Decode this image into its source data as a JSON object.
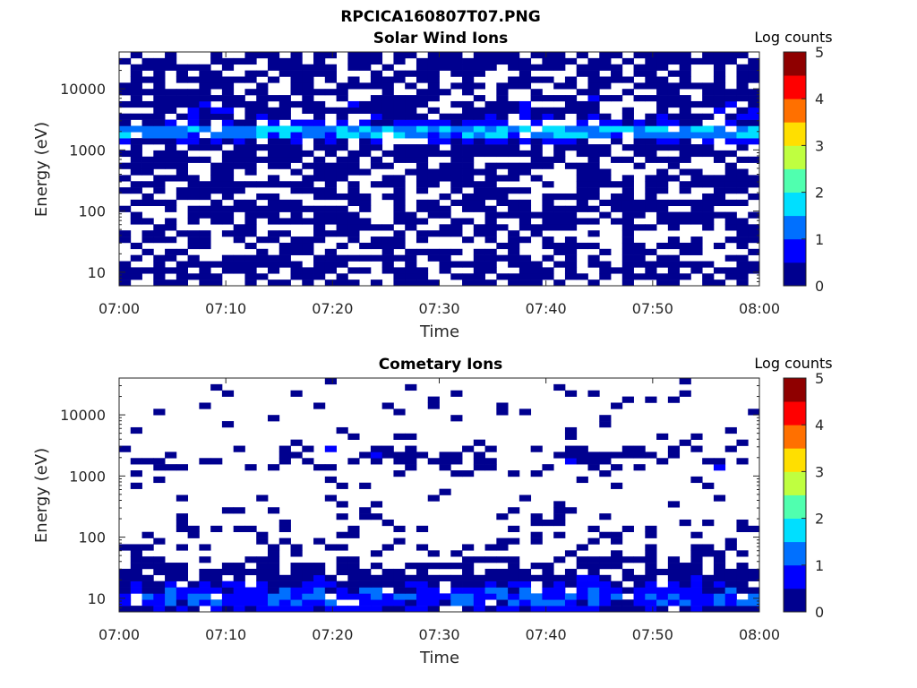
{
  "figure": {
    "title": "RPCICA160807T07.PNG"
  },
  "colormap": [
    "#00008f",
    "#0000ff",
    "#0070ff",
    "#00dfff",
    "#50ffaf",
    "#bfff40",
    "#ffdf00",
    "#ff7000",
    "#ff0000",
    "#8f0000"
  ],
  "chart_data": [
    {
      "type": "heatmap",
      "title": "Solar Wind Ions",
      "xlabel": "Time",
      "ylabel": "Energy (eV)",
      "yscale": "log",
      "ylim": [
        6,
        40000
      ],
      "xlim": [
        "07:00",
        "08:00"
      ],
      "x_ticks": [
        "07:00",
        "07:10",
        "07:20",
        "07:30",
        "07:40",
        "07:50",
        "08:00"
      ],
      "y_ticks": [
        "10",
        "100",
        "1000",
        "10000"
      ],
      "colorbar": {
        "label": "Log counts",
        "range": [
          0,
          5
        ],
        "ticks": [
          "0",
          "1",
          "2",
          "3",
          "4",
          "5"
        ]
      },
      "time_bins": 56,
      "energy_bins": 38,
      "seed": 7,
      "fill_profile": [
        {
          "energy": 7,
          "level": 0,
          "density": 0.55
        },
        {
          "energy": 12,
          "level": 0,
          "density": 0.75
        },
        {
          "energy": 25,
          "level": 0,
          "density": 0.45
        },
        {
          "energy": 60,
          "level": 0,
          "density": 0.55
        },
        {
          "energy": 150,
          "level": 0,
          "density": 0.6
        },
        {
          "energy": 500,
          "level": 0,
          "density": 0.55
        },
        {
          "energy": 1200,
          "level": 0,
          "density": 0.7
        },
        {
          "energy": 2000,
          "level": 1.8,
          "density": 1.0
        },
        {
          "energy": 3000,
          "level": 0.3,
          "density": 0.75
        },
        {
          "energy": 10000,
          "level": 0,
          "density": 0.65
        },
        {
          "energy": 40000,
          "level": 0,
          "density": 0.7
        }
      ]
    },
    {
      "type": "heatmap",
      "title": "Cometary Ions",
      "xlabel": "Time",
      "ylabel": "Energy (eV)",
      "yscale": "log",
      "ylim": [
        6,
        40000
      ],
      "xlim": [
        "07:00",
        "08:00"
      ],
      "x_ticks": [
        "07:00",
        "07:10",
        "07:20",
        "07:30",
        "07:40",
        "07:50",
        "08:00"
      ],
      "y_ticks": [
        "10",
        "100",
        "1000",
        "10000"
      ],
      "colorbar": {
        "label": "Log counts",
        "range": [
          0,
          5
        ],
        "ticks": [
          "0",
          "1",
          "2",
          "3",
          "4",
          "5"
        ]
      },
      "time_bins": 56,
      "energy_bins": 38,
      "seed": 13,
      "fill_profile": [
        {
          "energy": 7,
          "level": 0.5,
          "density": 0.95
        },
        {
          "energy": 10,
          "level": 1.0,
          "density": 0.95
        },
        {
          "energy": 15,
          "level": 0.6,
          "density": 0.9
        },
        {
          "energy": 25,
          "level": 0,
          "density": 0.75
        },
        {
          "energy": 45,
          "level": 0,
          "density": 0.45
        },
        {
          "energy": 100,
          "level": 0,
          "density": 0.25
        },
        {
          "energy": 300,
          "level": 0,
          "density": 0.1
        },
        {
          "energy": 1000,
          "level": 0,
          "density": 0.05
        },
        {
          "energy": 2000,
          "level": 0.2,
          "density": 0.55
        },
        {
          "energy": 4000,
          "level": 0,
          "density": 0.06
        },
        {
          "energy": 10000,
          "level": 0,
          "density": 0.08
        },
        {
          "energy": 40000,
          "level": 0,
          "density": 0.02
        }
      ]
    }
  ]
}
